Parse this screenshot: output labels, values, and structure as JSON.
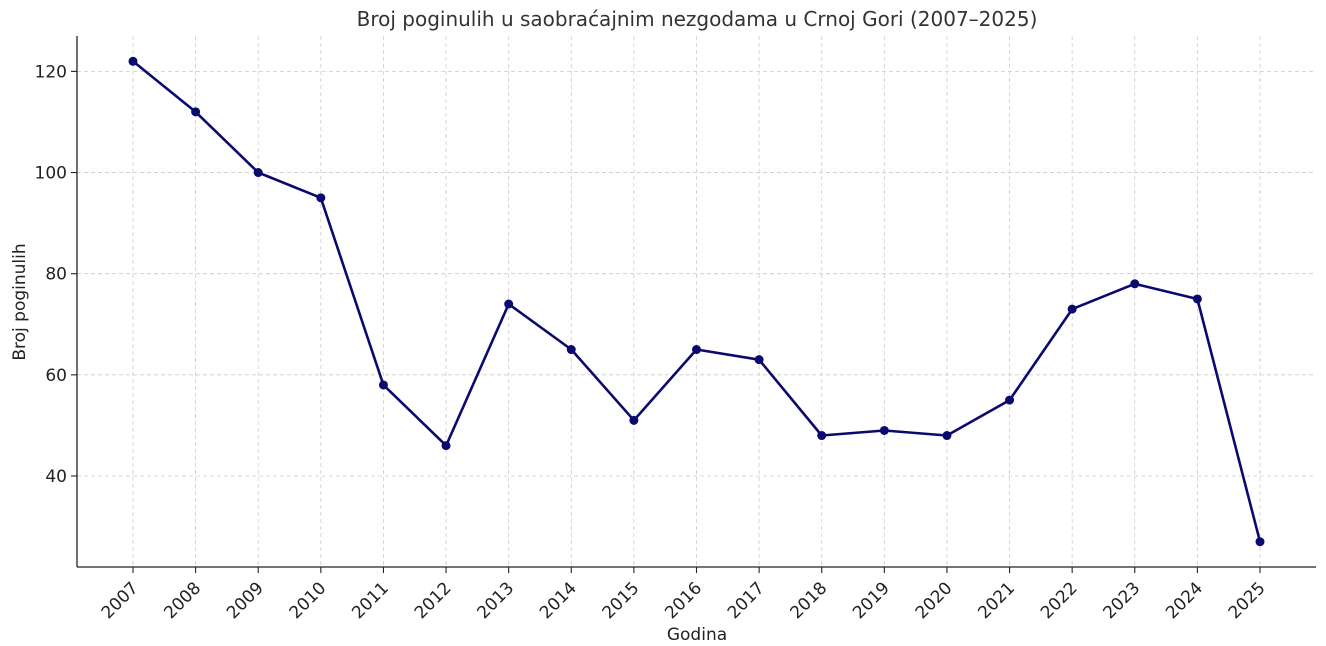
{
  "chart_data": {
    "type": "line",
    "title": "Broj poginulih u saobraćajnim nezgodama u Crnoj Gori (2007–2025)",
    "xlabel": "Godina",
    "ylabel": "Broj poginulih",
    "categories": [
      "2007",
      "2008",
      "2009",
      "2010",
      "2011",
      "2012",
      "2013",
      "2014",
      "2015",
      "2016",
      "2017",
      "2018",
      "2019",
      "2020",
      "2021",
      "2022",
      "2023",
      "2024",
      "2025"
    ],
    "series": [
      {
        "values": [
          122,
          112,
          100,
          95,
          58,
          46,
          74,
          65,
          51,
          65,
          63,
          48,
          49,
          48,
          55,
          73,
          78,
          75,
          27
        ],
        "color": "#0a0a6e"
      }
    ],
    "ylim": [
      22,
      127
    ],
    "yticks": [
      40,
      60,
      80,
      100,
      120
    ],
    "grid": true,
    "legend": "none"
  }
}
